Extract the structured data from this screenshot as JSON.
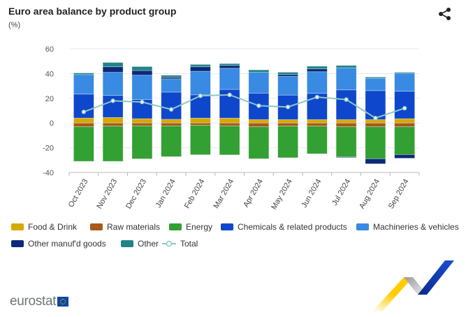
{
  "title": "Euro area balance by product group",
  "unit": "(%)",
  "icons": {
    "share": "share-icon"
  },
  "logo": "eurostat",
  "chart_data": {
    "type": "bar",
    "stacked": true,
    "title": "Euro area balance by product group",
    "ylabel": "(%)",
    "ylim": [
      -40,
      60
    ],
    "yticks": [
      60,
      40,
      20,
      0,
      -20,
      -40
    ],
    "grid": true,
    "legend_placement": "bottom",
    "categories": [
      "Oct 2023",
      "Nov 2023",
      "Dec 2023",
      "Jan 2024",
      "Feb 2024",
      "Mar 2024",
      "Apr 2024",
      "May 2024",
      "Jun 2024",
      "Jul 2024",
      "Aug 2024",
      "Sep 2024"
    ],
    "series": [
      {
        "name": "Food & Drink",
        "color": "#d4a900",
        "values": [
          4,
          4.5,
          3.5,
          3,
          4,
          4,
          2.8,
          2.8,
          2.8,
          2.8,
          2.8,
          3.5
        ]
      },
      {
        "name": "Raw materials",
        "color": "#a8591a",
        "values": [
          -3,
          -2.5,
          -2.3,
          -2.3,
          -1.8,
          -2.3,
          -3,
          -2.5,
          -2.5,
          -3,
          -3,
          -3
        ]
      },
      {
        "name": "Energy",
        "color": "#33a033",
        "values": [
          -28,
          -28.5,
          -26.7,
          -24.9,
          -23.9,
          -23.5,
          -25.9,
          -25.6,
          -22.4,
          -24.5,
          -25.9,
          -22.5
        ]
      },
      {
        "name": "Chemicals & related products",
        "color": "#0e47cb",
        "values": [
          19.4,
          17.8,
          15.5,
          22,
          18.8,
          23.2,
          21.4,
          19.8,
          21.2,
          24,
          23.4,
          22.2
        ]
      },
      {
        "name": "Machineries & vehicles",
        "color": "#388ae2",
        "values": [
          15.8,
          18.7,
          19.7,
          10.8,
          19.1,
          17.1,
          16.8,
          15.1,
          17.5,
          17.9,
          10,
          14.5
        ]
      },
      {
        "name": "Other manuf'd goods",
        "color": "#0b2a7a",
        "values": [
          0,
          4.5,
          3.8,
          1.2,
          3.6,
          2.3,
          0,
          1.5,
          2.3,
          -0.5,
          -4.1,
          -3
        ]
      },
      {
        "name": "Other",
        "color": "#208486",
        "values": [
          1.3,
          3.5,
          3.2,
          1.7,
          1.9,
          1.5,
          2,
          1.9,
          2.2,
          1.9,
          1,
          0.8
        ]
      }
    ],
    "line": {
      "name": "Total",
      "color": "#8fc6c6",
      "values": [
        9,
        18,
        17,
        11,
        22,
        22.8,
        14,
        13,
        21,
        19,
        4,
        12
      ]
    }
  }
}
